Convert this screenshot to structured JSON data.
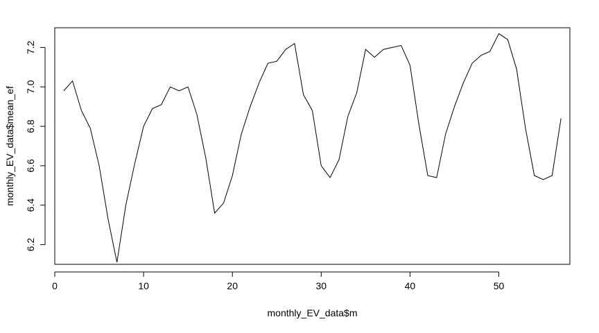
{
  "chart_data": {
    "type": "line",
    "title": "",
    "xlabel": "monthly_EV_data$m",
    "ylabel": "monthly_EV_data$mean_ef",
    "xlim": [
      0,
      58
    ],
    "ylim": [
      6.1,
      7.3
    ],
    "grid": false,
    "x_ticks": [
      0,
      10,
      20,
      30,
      40,
      50
    ],
    "y_ticks": [
      6.2,
      6.4,
      6.6,
      6.8,
      7.0,
      7.2
    ],
    "x_tick_labels": [
      "0",
      "10",
      "20",
      "30",
      "40",
      "50"
    ],
    "y_tick_labels": [
      "6.2",
      "6.4",
      "6.6",
      "6.8",
      "7.0",
      "7.2"
    ],
    "line_color": "#000000",
    "series": [
      {
        "x": [
          1,
          2,
          3,
          4,
          5,
          6,
          7,
          8,
          9,
          10,
          11,
          12,
          13,
          14,
          15,
          16,
          17,
          18,
          19,
          20,
          21,
          22,
          23,
          24,
          25,
          26,
          27,
          28,
          29,
          30,
          31,
          32,
          33,
          34,
          35,
          36,
          37,
          38,
          39,
          40,
          41,
          42,
          43,
          44,
          45,
          46,
          47,
          48,
          49,
          50,
          51,
          52,
          53,
          54,
          55,
          56,
          57
        ],
        "values": [
          6.98,
          7.03,
          6.88,
          6.79,
          6.6,
          6.33,
          6.11,
          6.4,
          6.61,
          6.8,
          6.89,
          6.91,
          7.0,
          6.98,
          7.0,
          6.86,
          6.64,
          6.36,
          6.41,
          6.55,
          6.76,
          6.9,
          7.02,
          7.12,
          7.13,
          7.19,
          7.22,
          6.96,
          6.88,
          6.6,
          6.54,
          6.63,
          6.85,
          6.97,
          7.19,
          7.15,
          7.19,
          7.2,
          7.21,
          7.11,
          6.81,
          6.55,
          6.54,
          6.76,
          6.9,
          7.02,
          7.12,
          7.16,
          7.18,
          7.27,
          7.24,
          7.09,
          6.79,
          6.55,
          6.53,
          6.55,
          6.84
        ]
      }
    ]
  }
}
